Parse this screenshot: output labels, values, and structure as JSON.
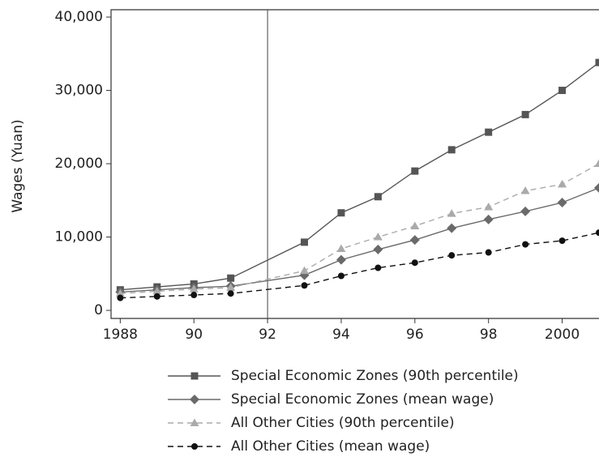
{
  "chart_data": {
    "type": "line",
    "y_label": "Wages (Yuan)",
    "x": [
      1988,
      1989,
      1990,
      1991,
      1993,
      1994,
      1995,
      1996,
      1997,
      1998,
      1999,
      2000,
      2001
    ],
    "xlim": [
      1987.75,
      2001
    ],
    "xticks": [
      {
        "value": 1988,
        "label": "1988"
      },
      {
        "value": 1990,
        "label": "90"
      },
      {
        "value": 1992,
        "label": "92"
      },
      {
        "value": 1994,
        "label": "94"
      },
      {
        "value": 1996,
        "label": "96"
      },
      {
        "value": 1998,
        "label": "98"
      },
      {
        "value": 2000,
        "label": "2000"
      }
    ],
    "ylim": [
      -1100,
      41000
    ],
    "yticks": [
      0,
      {
        "value": 10000,
        "label": "10,000"
      },
      {
        "value": 20000,
        "label": "20,000"
      },
      {
        "value": 30000,
        "label": "30,000"
      },
      {
        "value": 40000,
        "label": "40,000"
      }
    ],
    "vline": 1992,
    "series": [
      {
        "name": "Special Economic Zones (90th percentile)",
        "color": "#555555",
        "marker": "square",
        "dash": false,
        "values": [
          2800,
          3200,
          3600,
          4400,
          9300,
          13300,
          15500,
          19000,
          21900,
          24300,
          26700,
          30000,
          33800
        ]
      },
      {
        "name": "Special Economic Zones (mean wage)",
        "color": "#6a6a6a",
        "marker": "diamond",
        "dash": false,
        "values": [
          2500,
          2800,
          3100,
          3300,
          4800,
          6900,
          8300,
          9600,
          11200,
          12400,
          13500,
          14700,
          16700
        ]
      },
      {
        "name": "All Other Cities (90th percentile)",
        "color": "#aaaaaa",
        "marker": "triangle",
        "dash": true,
        "values": [
          2300,
          2600,
          2900,
          3100,
          5400,
          8400,
          10000,
          11500,
          13200,
          14100,
          16300,
          17200,
          20000
        ]
      },
      {
        "name": "All Other Cities (mean wage)",
        "color": "#111111",
        "marker": "circle",
        "dash": true,
        "values": [
          1700,
          1900,
          2100,
          2300,
          3400,
          4700,
          5800,
          6500,
          7500,
          7900,
          9000,
          9500,
          10600
        ]
      }
    ]
  }
}
